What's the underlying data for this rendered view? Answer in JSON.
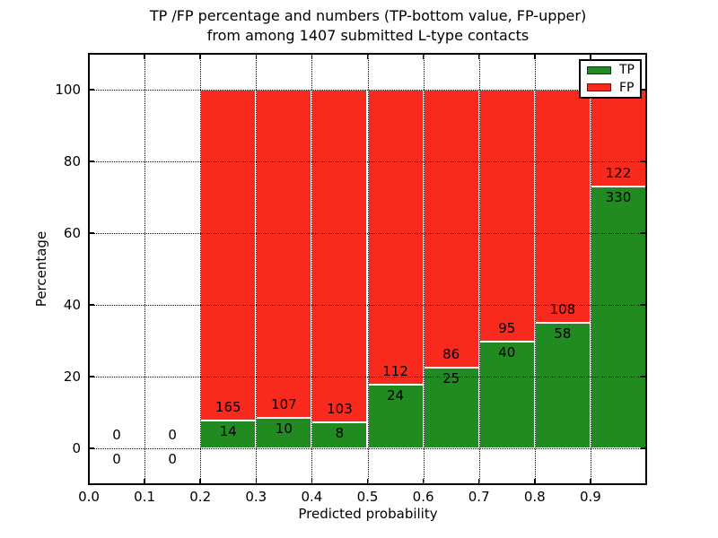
{
  "title": {
    "line1": "TP /FP percentage and numbers (TP-bottom value, FP-upper)",
    "line2": "from among 1407 submitted L-type contacts"
  },
  "axes": {
    "xlabel": "Predicted probability",
    "ylabel": "Percentage"
  },
  "legend": {
    "items": [
      {
        "label": "TP",
        "color": "#218a21"
      },
      {
        "label": "FP",
        "color": "#f8291d"
      }
    ]
  },
  "chart_data": {
    "type": "bar",
    "stacked": true,
    "normalized_to": 100,
    "title": "TP /FP percentage and numbers (TP-bottom value, FP-upper) from among 1407 submitted L-type contacts",
    "xlabel": "Predicted probability",
    "ylabel": "Percentage",
    "total_submitted": 1407,
    "bin_width": 0.1,
    "bins_start": [
      0.0,
      0.1,
      0.2,
      0.3,
      0.4,
      0.5,
      0.6,
      0.7,
      0.8,
      0.9
    ],
    "xticks": [
      "0.0",
      "0.1",
      "0.2",
      "0.3",
      "0.4",
      "0.5",
      "0.6",
      "0.7",
      "0.8",
      "0.9"
    ],
    "yticks": [
      0,
      20,
      40,
      60,
      80,
      100
    ],
    "xlim": [
      0.0,
      1.0
    ],
    "ylim": [
      -10,
      110
    ],
    "grid": "dotted",
    "legend_position": "upper right",
    "bar_label_rule": "FP count above stack boundary, TP count below",
    "series": [
      {
        "name": "TP",
        "color": "#218a21",
        "counts": [
          0,
          0,
          14,
          10,
          8,
          24,
          25,
          40,
          58,
          330
        ],
        "pct": [
          0,
          0,
          7.82,
          8.55,
          7.21,
          17.65,
          22.52,
          29.63,
          34.94,
          73.01
        ]
      },
      {
        "name": "FP",
        "color": "#f8291d",
        "counts": [
          0,
          0,
          165,
          107,
          103,
          112,
          86,
          95,
          108,
          122
        ],
        "pct": [
          0,
          0,
          92.18,
          91.45,
          92.79,
          82.35,
          77.48,
          70.37,
          65.06,
          26.99
        ]
      }
    ]
  }
}
